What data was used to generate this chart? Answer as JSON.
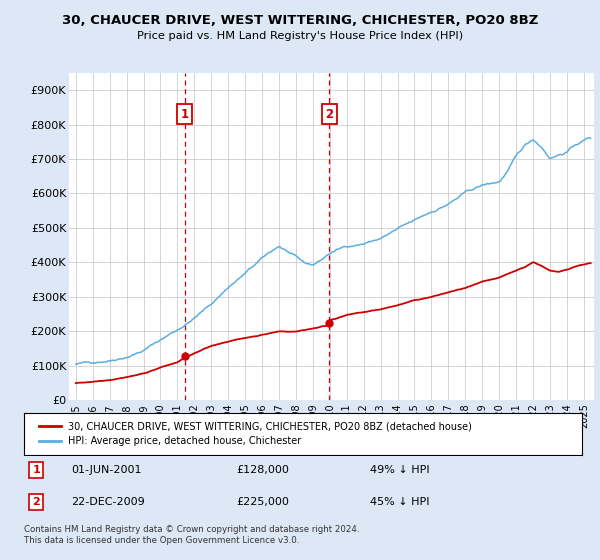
{
  "title": "30, CHAUCER DRIVE, WEST WITTERING, CHICHESTER, PO20 8BZ",
  "subtitle": "Price paid vs. HM Land Registry's House Price Index (HPI)",
  "ylim": [
    0,
    950000
  ],
  "yticks": [
    0,
    100000,
    200000,
    300000,
    400000,
    500000,
    600000,
    700000,
    800000,
    900000
  ],
  "ytick_labels": [
    "£0",
    "£100K",
    "£200K",
    "£300K",
    "£400K",
    "£500K",
    "£600K",
    "£700K",
    "£800K",
    "£900K"
  ],
  "hpi_color": "#5baee0",
  "price_color": "#cc0000",
  "vline_color": "#cc0000",
  "sale1_year": 2001.42,
  "sale2_year": 2009.98,
  "sale1_price": 128000,
  "sale2_price": 225000,
  "legend_line1": "30, CHAUCER DRIVE, WEST WITTERING, CHICHESTER, PO20 8BZ (detached house)",
  "legend_line2": "HPI: Average price, detached house, Chichester",
  "footnote": "Contains HM Land Registry data © Crown copyright and database right 2024.\nThis data is licensed under the Open Government Licence v3.0.",
  "background_color": "#dce8f5",
  "plot_bg_color": "#ffffff",
  "hpi_keypoints_x": [
    1995,
    1996,
    1997,
    1998,
    1999,
    2000,
    2001,
    2002,
    2003,
    2004,
    2005,
    2006,
    2007,
    2007.5,
    2008,
    2008.5,
    2009,
    2009.5,
    2010,
    2011,
    2012,
    2013,
    2014,
    2015,
    2016,
    2017,
    2018,
    2019,
    2020,
    2020.5,
    2021,
    2021.5,
    2022,
    2022.5,
    2023,
    2023.5,
    2024,
    2024.5,
    2025.3
  ],
  "hpi_keypoints_y": [
    105000,
    110000,
    120000,
    135000,
    155000,
    185000,
    215000,
    250000,
    290000,
    340000,
    380000,
    420000,
    455000,
    440000,
    420000,
    400000,
    395000,
    410000,
    430000,
    450000,
    460000,
    475000,
    500000,
    520000,
    545000,
    570000,
    600000,
    620000,
    630000,
    660000,
    700000,
    730000,
    750000,
    730000,
    700000,
    710000,
    720000,
    740000,
    760000
  ],
  "prop_keypoints_x": [
    1995,
    1996,
    1997,
    1998,
    1999,
    2000,
    2001,
    2001.42,
    2002,
    2003,
    2004,
    2005,
    2006,
    2007,
    2008,
    2009,
    2009.98,
    2010,
    2011,
    2012,
    2013,
    2014,
    2015,
    2016,
    2017,
    2018,
    2019,
    2020,
    2020.5,
    2021,
    2021.5,
    2022,
    2022.5,
    2023,
    2023.5,
    2024,
    2024.5,
    2025.3
  ],
  "prop_keypoints_y": [
    50000,
    55000,
    62000,
    72000,
    82000,
    100000,
    115000,
    128000,
    140000,
    160000,
    175000,
    185000,
    195000,
    205000,
    205000,
    215000,
    225000,
    240000,
    255000,
    262000,
    270000,
    282000,
    295000,
    305000,
    318000,
    330000,
    345000,
    355000,
    365000,
    375000,
    385000,
    400000,
    390000,
    375000,
    370000,
    378000,
    388000,
    398000
  ]
}
